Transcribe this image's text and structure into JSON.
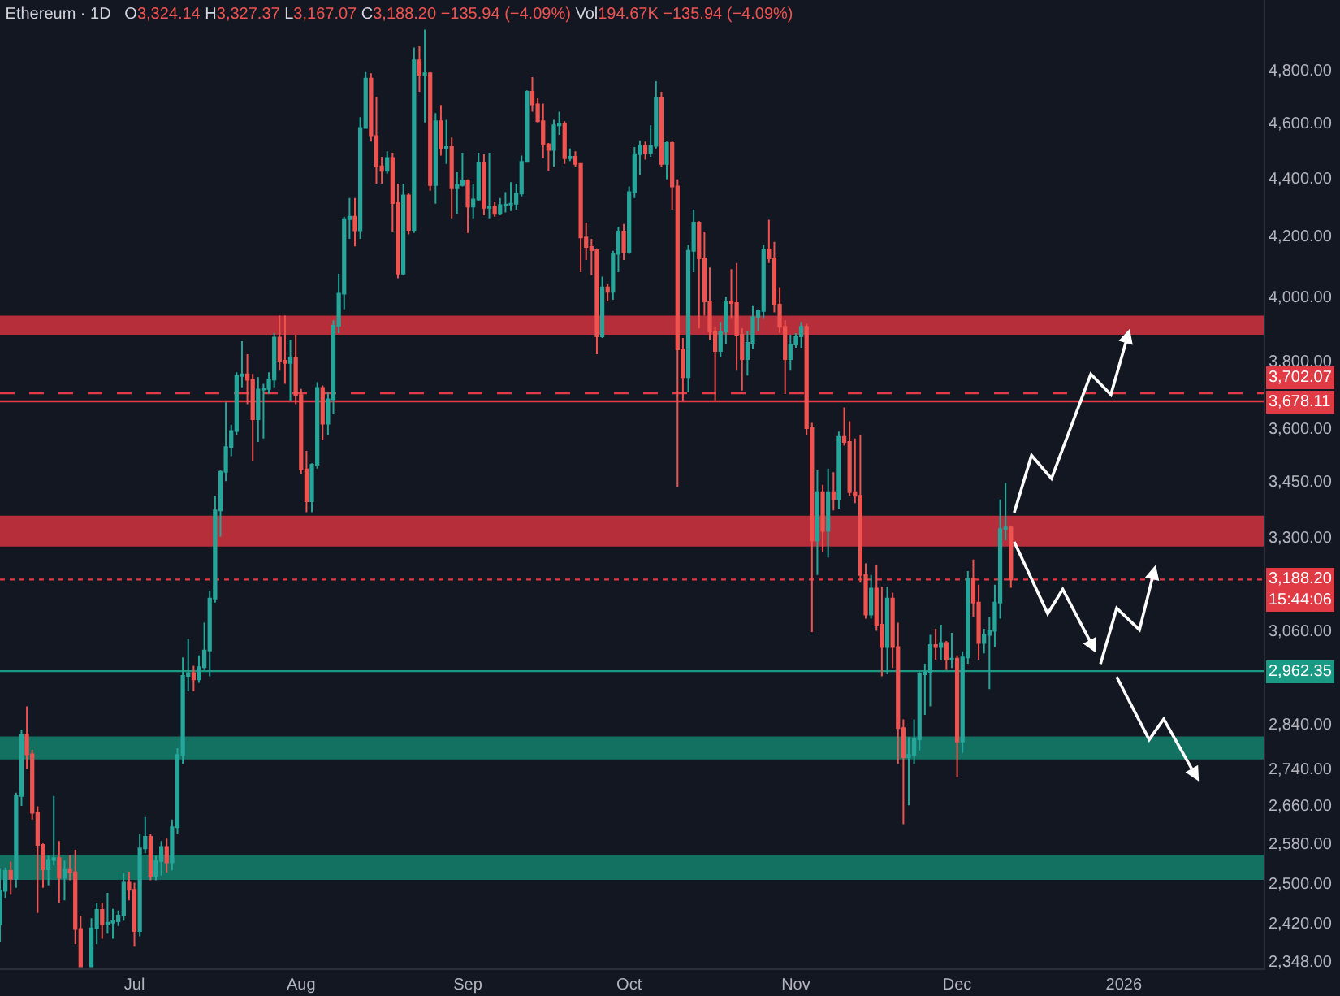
{
  "chart_data": {
    "type": "candlestick",
    "title": "Ethereum · 1D",
    "subtitle": "O3,324.14 H3,327.37 L3,167.07 C3,188.20 −135.94 (−4.09%) Vol194.67K −135.94 (−4.09%)",
    "x": [
      "2025-06-06",
      "2025-06-07",
      "2025-06-08",
      "2025-06-09",
      "2025-06-10",
      "2025-06-11",
      "2025-06-12",
      "2025-06-13",
      "2025-06-14",
      "2025-06-15",
      "2025-06-16",
      "2025-06-17",
      "2025-06-18",
      "2025-06-19",
      "2025-06-20",
      "2025-06-21",
      "2025-06-23",
      "2025-06-24",
      "2025-06-25",
      "2025-06-26",
      "2025-06-27",
      "2025-06-28",
      "2025-06-29",
      "2025-06-30",
      "2025-07-01",
      "2025-07-02",
      "2025-07-03",
      "2025-07-04",
      "2025-07-05",
      "2025-07-06",
      "2025-07-07",
      "2025-07-08",
      "2025-07-09",
      "2025-07-10",
      "2025-07-11",
      "2025-07-12",
      "2025-07-13",
      "2025-07-14",
      "2025-07-15",
      "2025-07-16",
      "2025-07-17",
      "2025-07-18",
      "2025-07-19",
      "2025-07-20",
      "2025-07-21",
      "2025-07-22",
      "2025-07-23",
      "2025-07-24",
      "2025-07-25",
      "2025-07-26",
      "2025-07-27",
      "2025-07-28",
      "2025-07-29",
      "2025-07-30",
      "2025-07-31",
      "2025-08-01",
      "2025-08-02",
      "2025-08-03",
      "2025-08-04",
      "2025-08-05",
      "2025-08-06",
      "2025-08-07",
      "2025-08-08",
      "2025-08-09",
      "2025-08-10",
      "2025-08-11",
      "2025-08-12",
      "2025-08-13",
      "2025-08-14",
      "2025-08-15",
      "2025-08-16",
      "2025-08-17",
      "2025-08-18",
      "2025-08-19",
      "2025-08-20",
      "2025-08-21",
      "2025-08-22",
      "2025-08-23",
      "2025-08-24",
      "2025-08-25",
      "2025-08-26",
      "2025-08-27",
      "2025-08-28",
      "2025-08-29",
      "2025-08-30",
      "2025-08-31",
      "2025-09-01",
      "2025-09-02",
      "2025-09-03",
      "2025-09-04",
      "2025-09-05",
      "2025-09-06",
      "2025-09-07",
      "2025-09-08",
      "2025-09-09",
      "2025-09-10",
      "2025-09-11",
      "2025-09-12",
      "2025-09-13",
      "2025-09-14",
      "2025-09-15",
      "2025-09-16",
      "2025-09-17",
      "2025-09-18",
      "2025-09-19",
      "2025-09-20",
      "2025-09-21",
      "2025-09-22",
      "2025-09-23",
      "2025-09-24",
      "2025-09-25",
      "2025-09-26",
      "2025-09-27",
      "2025-09-28",
      "2025-09-29",
      "2025-09-30",
      "2025-10-01",
      "2025-10-02",
      "2025-10-03",
      "2025-10-04",
      "2025-10-05",
      "2025-10-06",
      "2025-10-07",
      "2025-10-08",
      "2025-10-09",
      "2025-10-10",
      "2025-10-11",
      "2025-10-12",
      "2025-10-13",
      "2025-10-14",
      "2025-10-15",
      "2025-10-16",
      "2025-10-17",
      "2025-10-18",
      "2025-10-19",
      "2025-10-20",
      "2025-10-21",
      "2025-10-22",
      "2025-10-23",
      "2025-10-24",
      "2025-10-25",
      "2025-10-26",
      "2025-10-27",
      "2025-10-28",
      "2025-10-29",
      "2025-10-30",
      "2025-10-31",
      "2025-11-01",
      "2025-11-02",
      "2025-11-03",
      "2025-11-04",
      "2025-11-05",
      "2025-11-06",
      "2025-11-07",
      "2025-11-08",
      "2025-11-09",
      "2025-11-10",
      "2025-11-11",
      "2025-11-12",
      "2025-11-13",
      "2025-11-14",
      "2025-11-15",
      "2025-11-16",
      "2025-11-17",
      "2025-11-18",
      "2025-11-19",
      "2025-11-20",
      "2025-11-21",
      "2025-11-22",
      "2025-11-23",
      "2025-11-24",
      "2025-11-25",
      "2025-11-26",
      "2025-11-27",
      "2025-11-28",
      "2025-11-29",
      "2025-11-30",
      "2025-12-01",
      "2025-12-02",
      "2025-12-03",
      "2025-12-04",
      "2025-12-05",
      "2025-12-06",
      "2025-12-07",
      "2025-12-08",
      "2025-12-09",
      "2025-12-10",
      "2025-12-11"
    ],
    "ohlc": [
      [
        2418,
        2528,
        2383,
        2484
      ],
      [
        2484,
        2531,
        2470,
        2524
      ],
      [
        2524,
        2543,
        2476,
        2508
      ],
      [
        2508,
        2687,
        2490,
        2680
      ],
      [
        2680,
        2827,
        2659,
        2815
      ],
      [
        2815,
        2880,
        2740,
        2771
      ],
      [
        2771,
        2781,
        2630,
        2644
      ],
      [
        2644,
        2658,
        2440,
        2577
      ],
      [
        2577,
        2580,
        2490,
        2527
      ],
      [
        2527,
        2555,
        2495,
        2546
      ],
      [
        2546,
        2680,
        2535,
        2550
      ],
      [
        2550,
        2585,
        2460,
        2510
      ],
      [
        2510,
        2545,
        2465,
        2526
      ],
      [
        2526,
        2556,
        2505,
        2521
      ],
      [
        2521,
        2567,
        2380,
        2409
      ],
      [
        2409,
        2435,
        2338,
        2338
      ],
      [
        2338,
        2430,
        2338,
        2410
      ],
      [
        2410,
        2460,
        2380,
        2446
      ],
      [
        2446,
        2460,
        2390,
        2418
      ],
      [
        2418,
        2480,
        2400,
        2421
      ],
      [
        2421,
        2448,
        2390,
        2424
      ],
      [
        2424,
        2445,
        2415,
        2435
      ],
      [
        2435,
        2520,
        2425,
        2500
      ],
      [
        2500,
        2522,
        2465,
        2486
      ],
      [
        2486,
        2500,
        2375,
        2405
      ],
      [
        2405,
        2600,
        2395,
        2570
      ],
      [
        2570,
        2635,
        2560,
        2594
      ],
      [
        2594,
        2600,
        2505,
        2514
      ],
      [
        2514,
        2555,
        2505,
        2544
      ],
      [
        2544,
        2585,
        2515,
        2573
      ],
      [
        2573,
        2590,
        2520,
        2541
      ],
      [
        2541,
        2630,
        2525,
        2614
      ],
      [
        2614,
        2785,
        2600,
        2770
      ],
      [
        2770,
        2995,
        2750,
        2951
      ],
      [
        2951,
        3040,
        2915,
        2958
      ],
      [
        2958,
        2975,
        2915,
        2943
      ],
      [
        2943,
        3000,
        2935,
        2972
      ],
      [
        2972,
        3080,
        2965,
        3012
      ],
      [
        3012,
        3160,
        2950,
        3140
      ],
      [
        3140,
        3410,
        3130,
        3370
      ],
      [
        3370,
        3480,
        3300,
        3476
      ],
      [
        3476,
        3675,
        3450,
        3546
      ],
      [
        3546,
        3610,
        3520,
        3592
      ],
      [
        3592,
        3765,
        3580,
        3754
      ],
      [
        3754,
        3860,
        3720,
        3759
      ],
      [
        3759,
        3820,
        3670,
        3742
      ],
      [
        3742,
        3760,
        3505,
        3626
      ],
      [
        3626,
        3750,
        3560,
        3713
      ],
      [
        3713,
        3730,
        3570,
        3715
      ],
      [
        3715,
        3765,
        3700,
        3743
      ],
      [
        3743,
        3885,
        3720,
        3871
      ],
      [
        3871,
        3940,
        3770,
        3800
      ],
      [
        3800,
        3940,
        3730,
        3793
      ],
      [
        3793,
        3865,
        3680,
        3810
      ],
      [
        3810,
        3880,
        3670,
        3697
      ],
      [
        3697,
        3715,
        3470,
        3483
      ],
      [
        3483,
        3535,
        3365,
        3395
      ],
      [
        3395,
        3500,
        3365,
        3496
      ],
      [
        3496,
        3735,
        3485,
        3718
      ],
      [
        3718,
        3725,
        3565,
        3613
      ],
      [
        3613,
        3705,
        3580,
        3684
      ],
      [
        3684,
        3925,
        3640,
        3908
      ],
      [
        3908,
        4075,
        3885,
        4010
      ],
      [
        4010,
        4265,
        3960,
        4257
      ],
      [
        4257,
        4330,
        4190,
        4265
      ],
      [
        4265,
        4330,
        4165,
        4219
      ],
      [
        4219,
        4620,
        4190,
        4580
      ],
      [
        4580,
        4790,
        4580,
        4765
      ],
      [
        4765,
        4785,
        4530,
        4550
      ],
      [
        4550,
        4695,
        4380,
        4441
      ],
      [
        4441,
        4475,
        4380,
        4425
      ],
      [
        4425,
        4495,
        4415,
        4471
      ],
      [
        4471,
        4490,
        4215,
        4312
      ],
      [
        4312,
        4380,
        4060,
        4075
      ],
      [
        4075,
        4380,
        4070,
        4339
      ],
      [
        4339,
        4345,
        4205,
        4220
      ],
      [
        4220,
        4885,
        4210,
        4835
      ],
      [
        4835,
        4890,
        4715,
        4780
      ],
      [
        4780,
        4956,
        4600,
        4785
      ],
      [
        4785,
        4790,
        4355,
        4375
      ],
      [
        4375,
        4635,
        4310,
        4605
      ],
      [
        4605,
        4665,
        4480,
        4505
      ],
      [
        4505,
        4610,
        4450,
        4510
      ],
      [
        4510,
        4545,
        4260,
        4364
      ],
      [
        4364,
        4420,
        4275,
        4375
      ],
      [
        4375,
        4490,
        4370,
        4391
      ],
      [
        4391,
        4395,
        4210,
        4300
      ],
      [
        4300,
        4380,
        4260,
        4325
      ],
      [
        4325,
        4490,
        4320,
        4452
      ],
      [
        4452,
        4485,
        4270,
        4296
      ],
      [
        4296,
        4490,
        4260,
        4300
      ],
      [
        4300,
        4315,
        4265,
        4275
      ],
      [
        4275,
        4330,
        4270,
        4305
      ],
      [
        4305,
        4350,
        4280,
        4307
      ],
      [
        4307,
        4385,
        4285,
        4310
      ],
      [
        4310,
        4380,
        4290,
        4345
      ],
      [
        4345,
        4480,
        4335,
        4457
      ],
      [
        4457,
        4720,
        4455,
        4715
      ],
      [
        4715,
        4770,
        4640,
        4667
      ],
      [
        4667,
        4690,
        4600,
        4605
      ],
      [
        4605,
        4670,
        4470,
        4520
      ],
      [
        4520,
        4525,
        4425,
        4500
      ],
      [
        4500,
        4610,
        4440,
        4590
      ],
      [
        4590,
        4640,
        4555,
        4595
      ],
      [
        4595,
        4605,
        4450,
        4470
      ],
      [
        4470,
        4505,
        4460,
        4475
      ],
      [
        4475,
        4495,
        4440,
        4450
      ],
      [
        4450,
        4450,
        4080,
        4195
      ],
      [
        4195,
        4245,
        4120,
        4163
      ],
      [
        4163,
        4190,
        4070,
        4152
      ],
      [
        4152,
        4158,
        3820,
        3875
      ],
      [
        3875,
        4065,
        3870,
        4030
      ],
      [
        4030,
        4040,
        3985,
        4016
      ],
      [
        4016,
        4150,
        3990,
        4140
      ],
      [
        4140,
        4230,
        4080,
        4215
      ],
      [
        4215,
        4240,
        4120,
        4145
      ],
      [
        4145,
        4370,
        4140,
        4350
      ],
      [
        4350,
        4510,
        4330,
        4485
      ],
      [
        4485,
        4535,
        4410,
        4515
      ],
      [
        4515,
        4530,
        4465,
        4490
      ],
      [
        4490,
        4590,
        4475,
        4515
      ],
      [
        4515,
        4755,
        4505,
        4690
      ],
      [
        4690,
        4715,
        4440,
        4450
      ],
      [
        4450,
        4530,
        4395,
        4525
      ],
      [
        4525,
        4530,
        4290,
        4370
      ],
      [
        4370,
        4395,
        3435,
        3835
      ],
      [
        3835,
        3870,
        3680,
        3750
      ],
      [
        3750,
        4170,
        3705,
        4150
      ],
      [
        4150,
        4290,
        4080,
        4245
      ],
      [
        4245,
        4250,
        3900,
        4125
      ],
      [
        4125,
        4215,
        3940,
        3985
      ],
      [
        3985,
        4095,
        3865,
        3890
      ],
      [
        3890,
        3905,
        3680,
        3830
      ],
      [
        3830,
        3920,
        3810,
        3890
      ],
      [
        3890,
        4000,
        3850,
        3985
      ],
      [
        3985,
        4090,
        3930,
        3980
      ],
      [
        3980,
        4110,
        3770,
        3880
      ],
      [
        3880,
        3900,
        3710,
        3805
      ],
      [
        3805,
        3890,
        3755,
        3855
      ],
      [
        3855,
        3970,
        3835,
        3935
      ],
      [
        3935,
        3960,
        3890,
        3955
      ],
      [
        3955,
        4170,
        3930,
        4155
      ],
      [
        4155,
        4255,
        4110,
        4125
      ],
      [
        4125,
        4180,
        3950,
        3975
      ],
      [
        3975,
        4030,
        3885,
        3905
      ],
      [
        3905,
        3925,
        3700,
        3805
      ],
      [
        3805,
        3880,
        3770,
        3850
      ],
      [
        3850,
        3885,
        3840,
        3875
      ],
      [
        3875,
        3920,
        3840,
        3905
      ],
      [
        3905,
        3915,
        3580,
        3600
      ],
      [
        3600,
        3615,
        3057,
        3290
      ],
      [
        3290,
        3480,
        3200,
        3420
      ],
      [
        3420,
        3440,
        3260,
        3315
      ],
      [
        3315,
        3485,
        3245,
        3420
      ],
      [
        3420,
        3475,
        3370,
        3400
      ],
      [
        3400,
        3590,
        3375,
        3575
      ],
      [
        3575,
        3660,
        3550,
        3560
      ],
      [
        3560,
        3620,
        3410,
        3420
      ],
      [
        3420,
        3570,
        3390,
        3410
      ],
      [
        3410,
        3580,
        3180,
        3200
      ],
      [
        3200,
        3230,
        3090,
        3100
      ],
      [
        3100,
        3200,
        3090,
        3165
      ],
      [
        3165,
        3225,
        3060,
        3075
      ],
      [
        3075,
        3170,
        2950,
        3020
      ],
      [
        3020,
        3170,
        2955,
        3140
      ],
      [
        3140,
        3155,
        2970,
        3020
      ],
      [
        3020,
        3080,
        2750,
        2830
      ],
      [
        2830,
        2850,
        2620,
        2765
      ],
      [
        2765,
        2810,
        2660,
        2770
      ],
      [
        2770,
        2850,
        2750,
        2805
      ],
      [
        2805,
        2960,
        2780,
        2955
      ],
      [
        2955,
        2980,
        2860,
        2960
      ],
      [
        2960,
        3050,
        2880,
        3025
      ],
      [
        3025,
        3065,
        2990,
        3020
      ],
      [
        3020,
        3075,
        2990,
        3030
      ],
      [
        3030,
        3035,
        2965,
        2990
      ],
      [
        2990,
        3055,
        2970,
        2992
      ],
      [
        2992,
        3000,
        2720,
        2800
      ],
      [
        2800,
        3010,
        2775,
        2995
      ],
      [
        2995,
        3210,
        2980,
        3190
      ],
      [
        3190,
        3240,
        3095,
        3130
      ],
      [
        3130,
        3175,
        2990,
        3030
      ],
      [
        3030,
        3065,
        3005,
        3050
      ],
      [
        3050,
        3095,
        2920,
        3060
      ],
      [
        3060,
        3175,
        3020,
        3130
      ],
      [
        3130,
        3400,
        3090,
        3320
      ],
      [
        3320,
        3445,
        3290,
        3324.14
      ],
      [
        3324.14,
        3327.37,
        3167.07,
        3188.2
      ]
    ],
    "colors": [
      "#26a69a",
      "#26a69a",
      "#ef5350",
      "#26a69a",
      "#26a69a",
      "#ef5350",
      "#ef5350",
      "#ef5350",
      "#ef5350",
      "#26a69a",
      "#26a69a",
      "#ef5350",
      "#26a69a",
      "#ef5350",
      "#ef5350",
      "#ef5350",
      "#26a69a",
      "#26a69a",
      "#ef5350",
      "#26a69a",
      "#26a69a",
      "#26a69a",
      "#26a69a",
      "#ef5350",
      "#ef5350",
      "#26a69a",
      "#26a69a",
      "#ef5350",
      "#26a69a",
      "#26a69a",
      "#ef5350",
      "#26a69a",
      "#26a69a",
      "#26a69a",
      "#26a69a",
      "#ef5350",
      "#26a69a",
      "#26a69a",
      "#26a69a",
      "#26a69a",
      "#26a69a",
      "#26a69a",
      "#26a69a",
      "#26a69a",
      "#26a69a",
      "#ef5350",
      "#ef5350",
      "#26a69a",
      "#26a69a",
      "#26a69a",
      "#26a69a",
      "#ef5350",
      "#ef5350",
      "#26a69a",
      "#ef5350",
      "#ef5350",
      "#ef5350",
      "#26a69a",
      "#26a69a",
      "#ef5350",
      "#26a69a",
      "#26a69a",
      "#26a69a",
      "#26a69a",
      "#26a69a",
      "#ef5350",
      "#26a69a",
      "#26a69a",
      "#ef5350",
      "#ef5350",
      "#ef5350",
      "#26a69a",
      "#ef5350",
      "#ef5350",
      "#26a69a",
      "#ef5350",
      "#26a69a",
      "#ef5350",
      "#26a69a",
      "#ef5350",
      "#26a69a",
      "#ef5350",
      "#26a69a",
      "#ef5350",
      "#26a69a",
      "#26a69a",
      "#ef5350",
      "#26a69a",
      "#26a69a",
      "#ef5350",
      "#26a69a",
      "#ef5350",
      "#26a69a",
      "#26a69a",
      "#26a69a",
      "#26a69a",
      "#26a69a",
      "#26a69a",
      "#ef5350",
      "#ef5350",
      "#ef5350",
      "#ef5350",
      "#26a69a",
      "#26a69a",
      "#ef5350",
      "#26a69a",
      "#ef5350",
      "#ef5350",
      "#ef5350",
      "#ef5350",
      "#ef5350",
      "#26a69a",
      "#ef5350",
      "#26a69a",
      "#26a69a",
      "#ef5350",
      "#26a69a",
      "#26a69a",
      "#26a69a",
      "#ef5350",
      "#26a69a",
      "#26a69a",
      "#ef5350",
      "#26a69a",
      "#ef5350",
      "#ef5350",
      "#ef5350",
      "#26a69a",
      "#26a69a",
      "#ef5350",
      "#ef5350",
      "#ef5350",
      "#ef5350",
      "#26a69a",
      "#26a69a",
      "#ef5350",
      "#ef5350",
      "#ef5350",
      "#26a69a",
      "#26a69a",
      "#26a69a",
      "#26a69a",
      "#ef5350",
      "#ef5350",
      "#ef5350",
      "#ef5350",
      "#26a69a",
      "#26a69a",
      "#26a69a",
      "#ef5350",
      "#ef5350",
      "#26a69a",
      "#ef5350",
      "#26a69a",
      "#ef5350",
      "#26a69a",
      "#ef5350",
      "#ef5350",
      "#ef5350",
      "#ef5350",
      "#ef5350",
      "#26a69a",
      "#ef5350",
      "#ef5350",
      "#26a69a",
      "#ef5350",
      "#ef5350",
      "#ef5350",
      "#26a69a",
      "#26a69a",
      "#26a69a",
      "#26a69a",
      "#26a69a",
      "#ef5350",
      "#26a69a",
      "#ef5350",
      "#26a69a",
      "#ef5350",
      "#26a69a",
      "#26a69a",
      "#ef5350",
      "#ef5350",
      "#26a69a",
      "#26a69a",
      "#26a69a",
      "#26a69a",
      "#26a69a",
      "#ef5350"
    ],
    "bands": [
      {
        "axis": "y",
        "from": 3880,
        "to": 3940,
        "color": "#c4313c"
      },
      {
        "axis": "y",
        "from": 3274,
        "to": 3356,
        "color": "#c4313c"
      },
      {
        "axis": "y",
        "from": 2760,
        "to": 2811,
        "color": "#137a68"
      },
      {
        "axis": "y",
        "from": 2506,
        "to": 2557,
        "color": "#137a68"
      }
    ],
    "ref_lines": [
      {
        "axis": "y",
        "value": 3702.07,
        "label": "3,702.07",
        "color": "#e03a44",
        "line_style": "dashed"
      },
      {
        "axis": "y",
        "value": 3678.11,
        "label": "3,678.11",
        "color": "#e03a44",
        "line_style": "solid"
      },
      {
        "axis": "y",
        "value": 3188.2,
        "label": "3,188.20\n15:44:06",
        "color": "#e03a44",
        "line_style": "dotted"
      },
      {
        "axis": "y",
        "value": 2962.35,
        "label": "2,962.35",
        "color": "#1a9a84",
        "line_style": "solid"
      }
    ],
    "log": true,
    "xlim": [
      "2025-06-06",
      "2026-01-27"
    ],
    "ylim": [
      2334,
      5075
    ],
    "xticks": [
      {
        "value": "2025-07-01",
        "label": "Jul"
      },
      {
        "value": "2025-08-01",
        "label": "Aug"
      },
      {
        "value": "2025-09-01",
        "label": "Sep"
      },
      {
        "value": "2025-10-01",
        "label": "Oct"
      },
      {
        "value": "2025-11-01",
        "label": "Nov"
      },
      {
        "value": "2025-12-01",
        "label": "Dec"
      },
      {
        "value": "2026-01-01",
        "label": "2026"
      }
    ],
    "yticks": [
      {
        "value": 4800,
        "label": "4,800.00"
      },
      {
        "value": 4600,
        "label": "4,600.00"
      },
      {
        "value": 4400,
        "label": "4,400.00"
      },
      {
        "value": 4200,
        "label": "4,200.00"
      },
      {
        "value": 4000,
        "label": "4,000.00"
      },
      {
        "value": 3800,
        "label": "3,800.00"
      },
      {
        "value": 3600,
        "label": "3,600.00"
      },
      {
        "value": 3450,
        "label": "3,450.00"
      },
      {
        "value": 3300,
        "label": "3,300.00"
      },
      {
        "value": 3060,
        "label": "3,060.00"
      },
      {
        "value": 2840,
        "label": "2,840.00"
      },
      {
        "value": 2740,
        "label": "2,740.00"
      },
      {
        "value": 2660,
        "label": "2,660.00"
      },
      {
        "value": 2580,
        "label": "2,580.00"
      },
      {
        "value": 2500,
        "label": "2,500.00"
      },
      {
        "value": 2420,
        "label": "2,420.00"
      },
      {
        "value": 2348,
        "label": "2,348.00"
      }
    ]
  }
}
